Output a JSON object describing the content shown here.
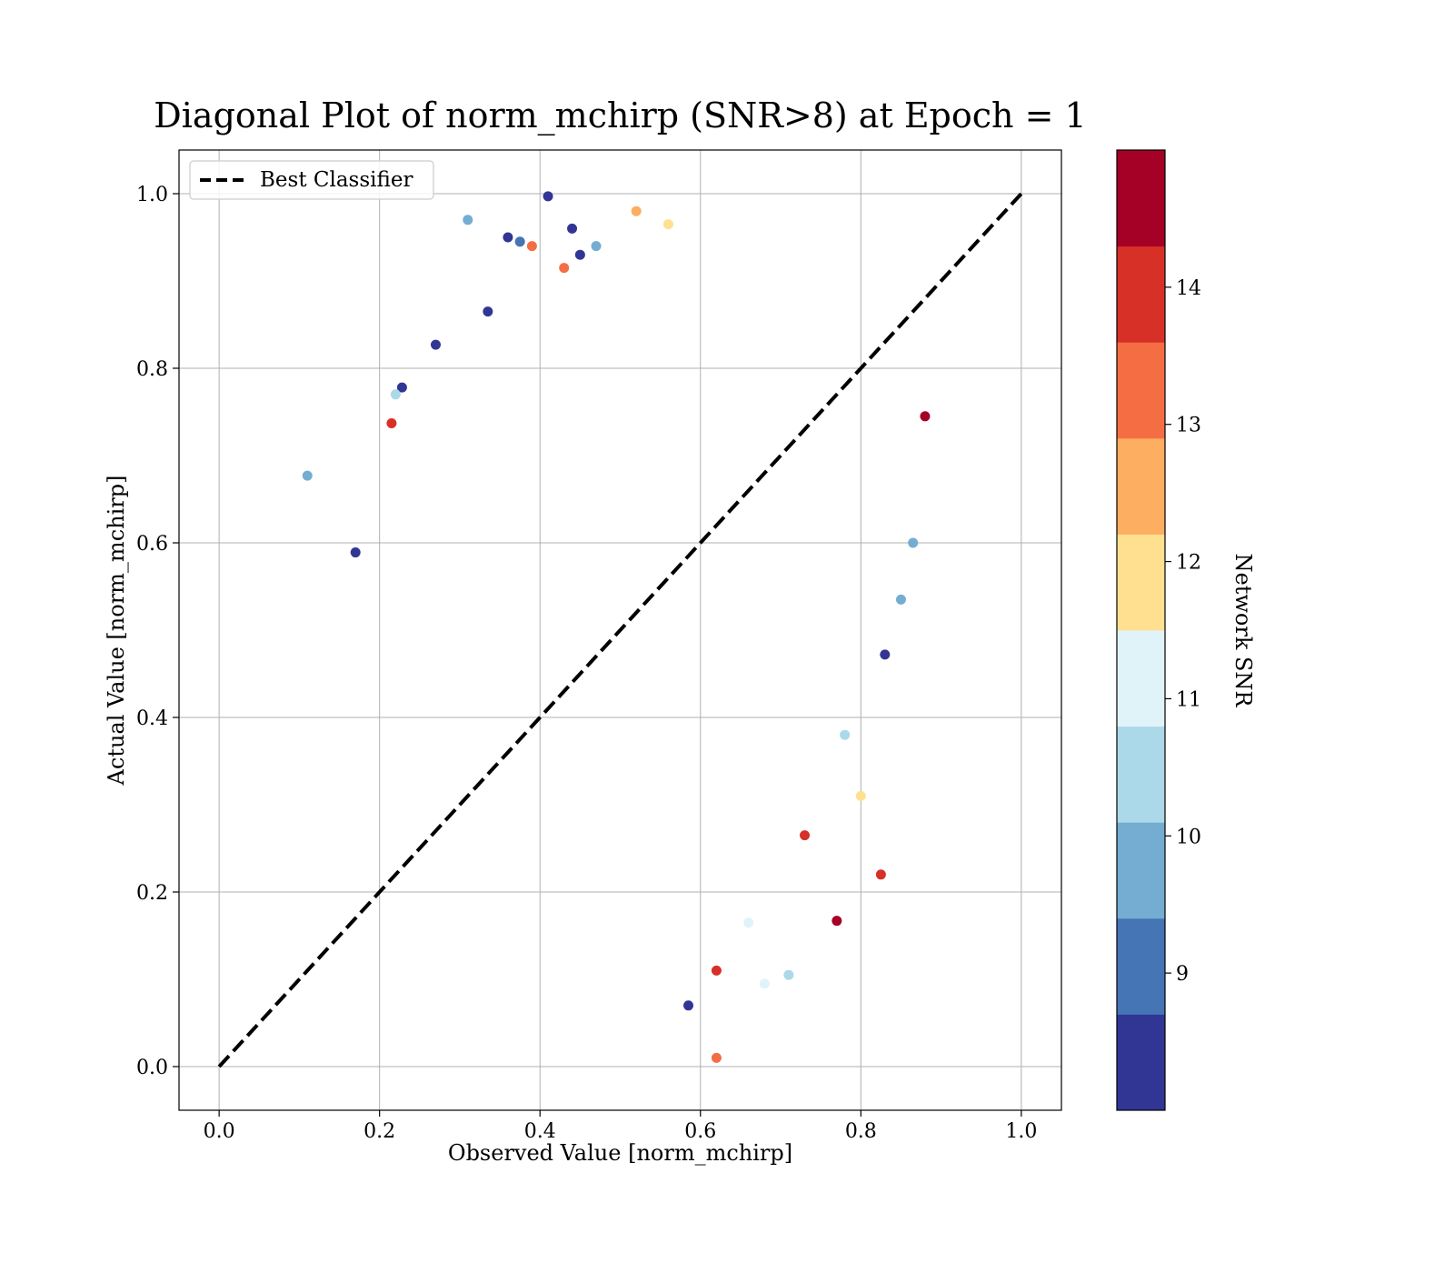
{
  "chart_data": {
    "type": "scatter",
    "title": "Diagonal Plot of norm_mchirp (SNR>8) at Epoch = 1",
    "xlabel": "Observed Value [norm_mchirp]",
    "ylabel": "Actual Value [norm_mchirp]",
    "xlim": [
      -0.05,
      1.05
    ],
    "ylim": [
      -0.05,
      1.05
    ],
    "x_ticks": [
      0.0,
      0.2,
      0.4,
      0.6,
      0.8,
      1.0
    ],
    "y_ticks": [
      0.0,
      0.2,
      0.4,
      0.6,
      0.8,
      1.0
    ],
    "x_tick_labels": [
      "0.0",
      "0.2",
      "0.4",
      "0.6",
      "0.8",
      "1.0"
    ],
    "y_tick_labels": [
      "0.0",
      "0.2",
      "0.4",
      "0.6",
      "0.8",
      "1.0"
    ],
    "grid": true,
    "legend": {
      "placement": "upper-left",
      "entries": [
        "Best Classifier"
      ]
    },
    "reference_line": {
      "name": "Best Classifier",
      "style": "dashed",
      "color": "#000000",
      "x": [
        0.0,
        1.0
      ],
      "y": [
        0.0,
        1.0
      ]
    },
    "colorbar": {
      "label": "Network SNR",
      "range": [
        8.0,
        15.0
      ],
      "ticks": [
        9,
        10,
        11,
        12,
        13,
        14
      ],
      "tick_labels": [
        "9",
        "10",
        "11",
        "12",
        "13",
        "14"
      ],
      "colors": [
        "#313695",
        "#4575b4",
        "#74add1",
        "#abd9e9",
        "#e0f3f8",
        "#fee090",
        "#fdae61",
        "#f46d43",
        "#d73027",
        "#a50026"
      ]
    },
    "series": [
      {
        "description": "",
        "x": [
          0.11,
          0.17,
          0.215,
          0.22,
          0.228,
          0.27,
          0.31,
          0.335,
          0.36,
          0.375,
          0.39,
          0.41,
          0.43,
          0.44,
          0.45,
          0.47,
          0.52,
          0.56,
          0.585,
          0.62,
          0.62,
          0.66,
          0.68,
          0.71,
          0.73,
          0.77,
          0.78,
          0.8,
          0.825,
          0.83,
          0.85,
          0.865,
          0.88
        ],
        "y": [
          0.677,
          0.589,
          0.737,
          0.77,
          0.778,
          0.827,
          0.97,
          0.865,
          0.95,
          0.945,
          0.94,
          0.997,
          0.915,
          0.96,
          0.93,
          0.94,
          0.98,
          0.965,
          0.07,
          0.01,
          0.11,
          0.165,
          0.095,
          0.105,
          0.265,
          0.167,
          0.38,
          0.31,
          0.22,
          0.472,
          0.535,
          0.6,
          0.745
        ],
        "snr": [
          10,
          8.5,
          14,
          10.5,
          8.5,
          8.5,
          10,
          8.5,
          8.5,
          9,
          13,
          8.5,
          13,
          8.5,
          8.5,
          9.5,
          12.5,
          12,
          8.5,
          13,
          14,
          11,
          11,
          10.5,
          14,
          14.5,
          10.5,
          12,
          14,
          8.5,
          9.5,
          10,
          14.5
        ]
      }
    ]
  }
}
